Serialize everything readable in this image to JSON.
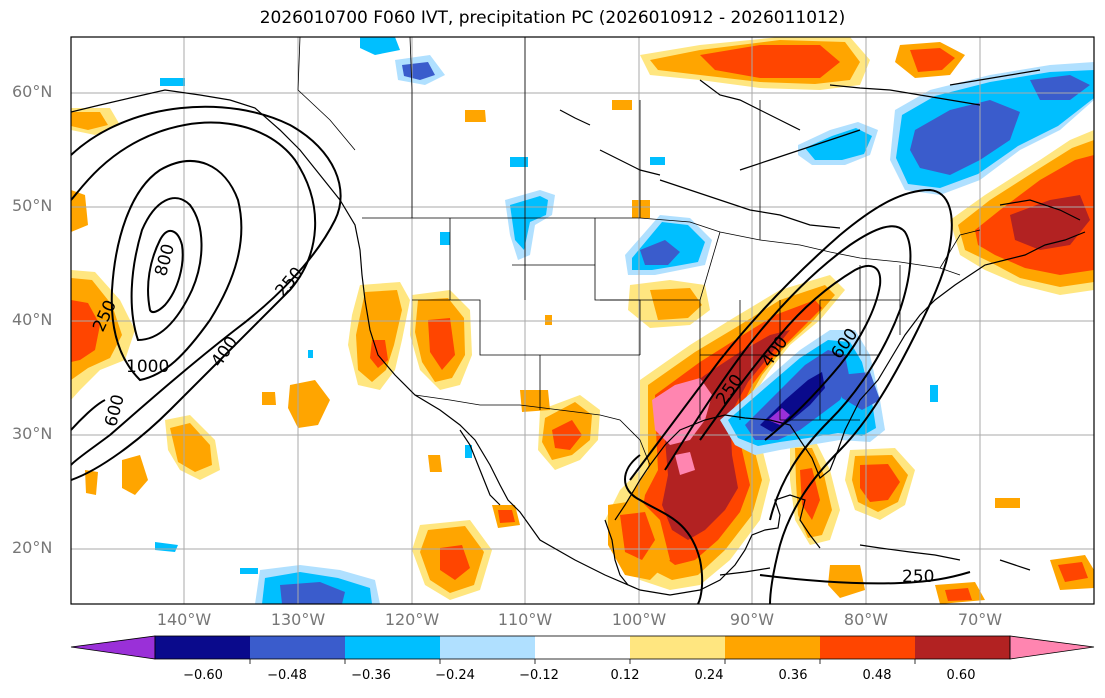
{
  "title": "2026010700 F060 IVT, precipitation PC (2026010912 - 2026011012)",
  "lat_labels": [
    "60°N",
    "50°N",
    "40°N",
    "30°N",
    "20°N"
  ],
  "lon_labels": [
    "140°W",
    "130°W",
    "120°W",
    "110°W",
    "100°W",
    "90°W",
    "80°W",
    "70°W"
  ],
  "contour_labels": [
    "250",
    "400",
    "600",
    "800",
    "1000",
    "250",
    "400",
    "600",
    "250",
    "250"
  ],
  "colorbar": {
    "ticks": [
      "−0.60",
      "−0.48",
      "−0.36",
      "−0.24",
      "−0.12",
      "0.12",
      "0.24",
      "0.36",
      "0.48",
      "0.60"
    ],
    "colors": [
      "#9a30d8",
      "#0a0a8c",
      "#3a5ccc",
      "#00bfff",
      "#b0e0ff",
      "#ffffff",
      "#ffe680",
      "#ffa500",
      "#ff4500",
      "#b22222",
      "#ff85b0"
    ]
  },
  "palette": {
    "precip_pos": [
      "#ffe680",
      "#ffa500",
      "#ff4500",
      "#b22222",
      "#ff85b0"
    ],
    "precip_neg": [
      "#b0e0ff",
      "#00bfff",
      "#3a5ccc",
      "#0a0a8c",
      "#9a30d8"
    ]
  }
}
